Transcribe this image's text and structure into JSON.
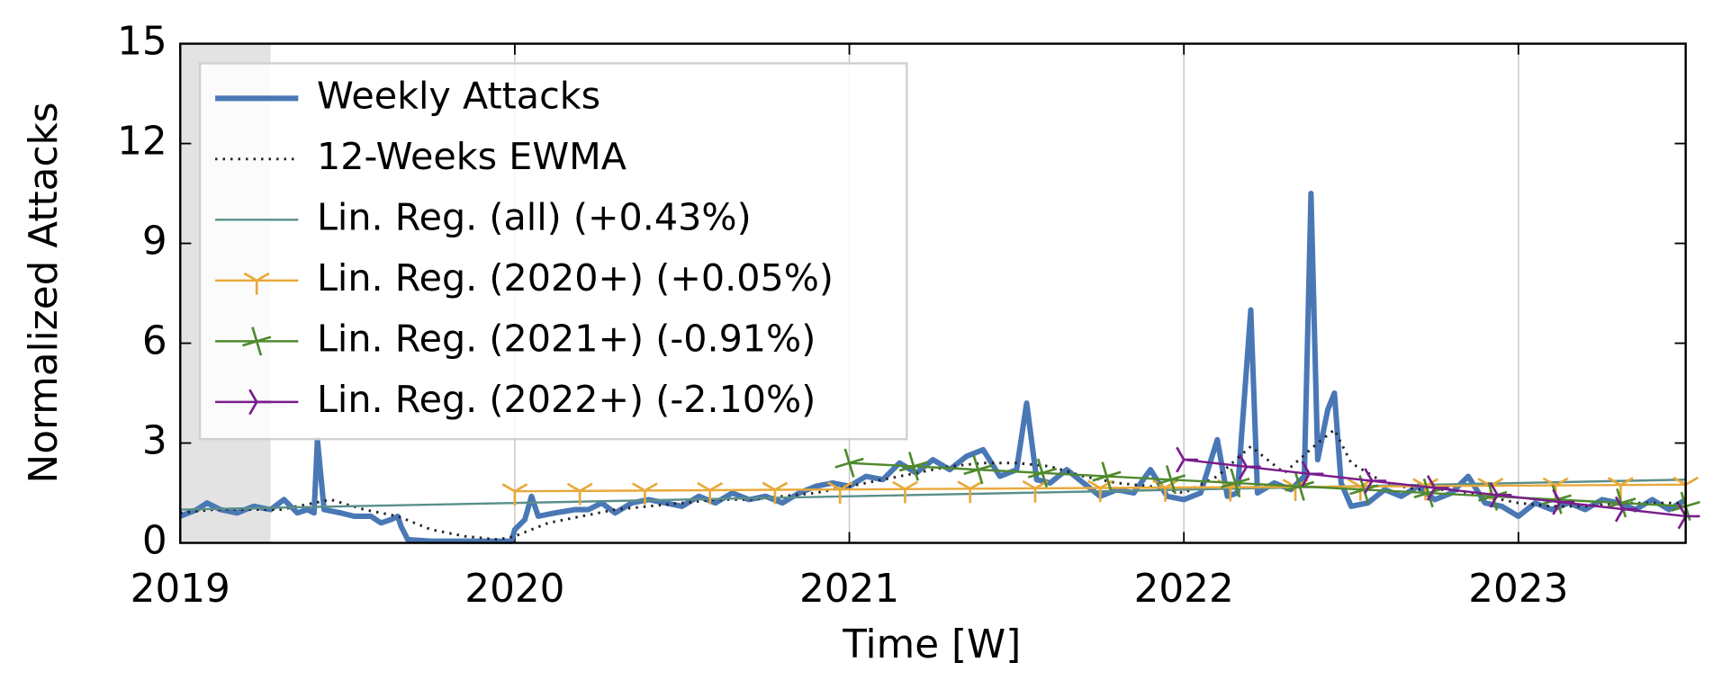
{
  "chart_data": {
    "type": "line",
    "xlabel": "Time [W]",
    "ylabel": "Normalized Attacks",
    "xlim": [
      2019,
      2023.5
    ],
    "xticks": [
      2019,
      2020,
      2021,
      2022,
      2023
    ],
    "ylim": [
      0,
      15
    ],
    "yticks": [
      0,
      3,
      6,
      9,
      12,
      15
    ],
    "grid": "x",
    "legend": "upper left",
    "shaded_span": [
      2019,
      2019.27
    ],
    "series": [
      {
        "name": "Weekly Attacks",
        "color": "#4a78b5",
        "style": "solid",
        "x": [
          2019.0,
          2019.05,
          2019.08,
          2019.12,
          2019.17,
          2019.22,
          2019.27,
          2019.31,
          2019.35,
          2019.38,
          2019.4,
          2019.41,
          2019.43,
          2019.48,
          2019.52,
          2019.57,
          2019.6,
          2019.63,
          2019.65,
          2019.66,
          2019.68,
          2019.75,
          2019.85,
          2019.95,
          2019.99,
          2020.0,
          2020.03,
          2020.05,
          2020.07,
          2020.12,
          2020.18,
          2020.22,
          2020.26,
          2020.3,
          2020.35,
          2020.4,
          2020.45,
          2020.5,
          2020.55,
          2020.6,
          2020.65,
          2020.7,
          2020.75,
          2020.8,
          2020.85,
          2020.9,
          2020.95,
          2021.0,
          2021.05,
          2021.1,
          2021.15,
          2021.2,
          2021.25,
          2021.3,
          2021.35,
          2021.4,
          2021.45,
          2021.5,
          2021.53,
          2021.56,
          2021.6,
          2021.65,
          2021.7,
          2021.75,
          2021.8,
          2021.85,
          2021.9,
          2021.95,
          2022.0,
          2022.05,
          2022.1,
          2022.13,
          2022.16,
          2022.2,
          2022.22,
          2022.27,
          2022.32,
          2022.36,
          2022.38,
          2022.4,
          2022.43,
          2022.45,
          2022.47,
          2022.5,
          2022.55,
          2022.6,
          2022.65,
          2022.7,
          2022.75,
          2022.8,
          2022.85,
          2022.9,
          2022.95,
          2023.0,
          2023.05,
          2023.1,
          2023.15,
          2023.2,
          2023.25,
          2023.3,
          2023.35,
          2023.4,
          2023.45,
          2023.5
        ],
        "values": [
          0.8,
          1.0,
          1.2,
          1.0,
          0.9,
          1.1,
          1.0,
          1.3,
          0.9,
          1.0,
          0.9,
          3.1,
          1.0,
          0.9,
          0.8,
          0.8,
          0.6,
          0.7,
          0.8,
          0.5,
          0.1,
          0.05,
          0.05,
          0.05,
          0.05,
          0.4,
          0.7,
          1.4,
          0.8,
          0.9,
          1.0,
          1.0,
          1.2,
          0.9,
          1.2,
          1.3,
          1.2,
          1.1,
          1.4,
          1.2,
          1.5,
          1.3,
          1.4,
          1.2,
          1.5,
          1.7,
          1.8,
          1.7,
          2.0,
          1.9,
          2.4,
          2.1,
          2.5,
          2.2,
          2.6,
          2.8,
          2.0,
          2.2,
          4.2,
          1.9,
          1.8,
          2.2,
          1.8,
          1.4,
          1.6,
          1.5,
          2.2,
          1.4,
          1.3,
          1.5,
          3.1,
          1.4,
          1.5,
          7.0,
          1.5,
          1.8,
          1.6,
          2.0,
          10.5,
          2.5,
          4.0,
          4.5,
          1.8,
          1.1,
          1.2,
          1.6,
          1.4,
          1.7,
          1.3,
          1.5,
          2.0,
          1.2,
          1.1,
          0.8,
          1.2,
          1.0,
          1.2,
          1.0,
          1.3,
          1.2,
          1.0,
          1.3,
          1.0,
          1.3
        ]
      },
      {
        "name": "12-Weeks EWMA",
        "color": "#222222",
        "style": "dotted",
        "x": [
          2019.0,
          2019.1,
          2019.2,
          2019.3,
          2019.4,
          2019.45,
          2019.55,
          2019.65,
          2019.75,
          2019.85,
          2019.95,
          2020.0,
          2020.1,
          2020.2,
          2020.3,
          2020.4,
          2020.5,
          2020.6,
          2020.7,
          2020.8,
          2020.9,
          2021.0,
          2021.1,
          2021.2,
          2021.3,
          2021.4,
          2021.5,
          2021.6,
          2021.7,
          2021.8,
          2021.9,
          2022.0,
          2022.1,
          2022.2,
          2022.3,
          2022.4,
          2022.45,
          2022.5,
          2022.6,
          2022.7,
          2022.8,
          2022.9,
          2023.0,
          2023.1,
          2023.2,
          2023.3,
          2023.4,
          2023.5
        ],
        "values": [
          0.9,
          1.0,
          1.0,
          1.0,
          1.2,
          1.3,
          1.0,
          0.8,
          0.4,
          0.2,
          0.1,
          0.2,
          0.6,
          0.8,
          1.0,
          1.1,
          1.2,
          1.3,
          1.3,
          1.4,
          1.5,
          1.7,
          1.9,
          2.1,
          2.3,
          2.4,
          2.4,
          2.3,
          2.0,
          1.8,
          1.7,
          1.5,
          2.0,
          2.9,
          2.1,
          3.0,
          3.4,
          2.4,
          1.8,
          1.6,
          1.6,
          1.4,
          1.2,
          1.1,
          1.1,
          1.2,
          1.2,
          1.2
        ]
      },
      {
        "name": "Lin. Reg. (all) (+0.43%)",
        "color": "#5a8f8a",
        "style": "solid",
        "marker": "none",
        "x": [
          2019.0,
          2023.5
        ],
        "values": [
          1.0,
          1.9
        ]
      },
      {
        "name": "Lin. Reg. (2020+) (+0.05%)",
        "color": "#e8a93a",
        "style": "solid",
        "marker": "tri_down",
        "x": [
          2020.0,
          2023.5
        ],
        "values": [
          1.55,
          1.75
        ]
      },
      {
        "name": "Lin. Reg. (2021+) (-0.91%)",
        "color": "#4f8a2e",
        "style": "solid",
        "marker": "plus",
        "x": [
          2021.0,
          2023.5
        ],
        "values": [
          2.4,
          1.1
        ]
      },
      {
        "name": "Lin. Reg. (2022+) (-2.10%)",
        "color": "#7a1c8c",
        "style": "solid",
        "marker": "tri_left",
        "x": [
          2022.0,
          2023.5
        ],
        "values": [
          2.5,
          0.8
        ]
      }
    ]
  }
}
